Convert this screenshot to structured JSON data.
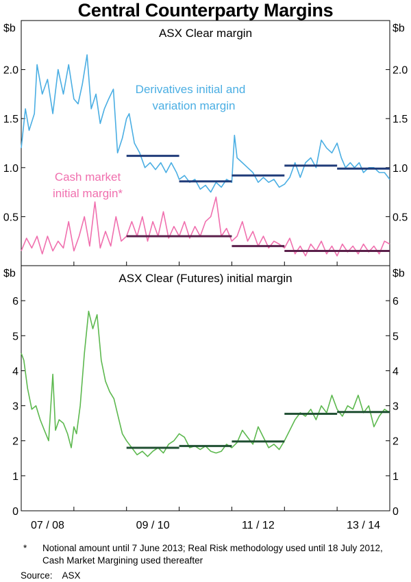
{
  "title": "Central Counterparty Margins",
  "footnote": {
    "mark": "*",
    "text": "Notional amount until 7 June 2013; Real Risk methodology used until 18 July 2012, Cash Market Margining used thereafter"
  },
  "source": {
    "label": "Source:",
    "value": "ASX"
  },
  "colors": {
    "derivatives": "#4aaee3",
    "cash": "#f06fae",
    "futures": "#5cb84e",
    "avg_navy": "#1f3a78",
    "avg_green": "#1f4f32"
  },
  "chart_data": [
    {
      "type": "line",
      "title": "ASX Clear margin",
      "ylabel": "$b",
      "ylim": [
        0.0,
        2.5
      ],
      "yticks": [
        0.5,
        1.0,
        1.5,
        2.0
      ],
      "ytick_labels": [
        "0.5",
        "1.0",
        "1.5",
        "2.0"
      ],
      "xlim": [
        2007.0,
        2014.0
      ],
      "series": [
        {
          "name": "Derivatives initial and variation margin",
          "label_lines": [
            "Derivatives initial and",
            "variation margin"
          ],
          "color": "#4aaee3",
          "x": [
            2007.0,
            2007.08,
            2007.15,
            2007.25,
            2007.3,
            2007.4,
            2007.5,
            2007.6,
            2007.7,
            2007.8,
            2007.9,
            2008.0,
            2008.08,
            2008.16,
            2008.25,
            2008.33,
            2008.42,
            2008.5,
            2008.58,
            2008.66,
            2008.75,
            2008.83,
            2008.92,
            2009.0,
            2009.05,
            2009.15,
            2009.25,
            2009.35,
            2009.45,
            2009.55,
            2009.65,
            2009.75,
            2009.85,
            2009.95,
            2010.0,
            2010.1,
            2010.2,
            2010.3,
            2010.4,
            2010.5,
            2010.6,
            2010.7,
            2010.8,
            2010.9,
            2011.0,
            2011.05,
            2011.1,
            2011.2,
            2011.3,
            2011.4,
            2011.5,
            2011.6,
            2011.7,
            2011.8,
            2011.9,
            2012.0,
            2012.1,
            2012.2,
            2012.3,
            2012.4,
            2012.5,
            2012.6,
            2012.7,
            2012.8,
            2012.9,
            2013.0,
            2013.08,
            2013.16,
            2013.25,
            2013.33,
            2013.42,
            2013.5,
            2013.6,
            2013.7,
            2013.8,
            2013.9,
            2014.0
          ],
          "values": [
            1.2,
            1.6,
            1.38,
            1.55,
            2.05,
            1.75,
            1.9,
            1.55,
            2.0,
            1.75,
            2.05,
            1.7,
            1.65,
            1.85,
            2.15,
            1.6,
            1.75,
            1.45,
            1.6,
            1.7,
            1.8,
            1.15,
            1.3,
            1.5,
            1.55,
            1.25,
            1.15,
            1.0,
            1.05,
            0.98,
            1.05,
            0.95,
            1.05,
            0.95,
            0.88,
            0.92,
            0.85,
            0.88,
            0.78,
            0.82,
            0.75,
            0.85,
            0.8,
            0.88,
            0.85,
            1.33,
            1.1,
            1.05,
            1.0,
            0.95,
            0.85,
            0.9,
            0.85,
            0.88,
            0.8,
            0.83,
            0.9,
            1.05,
            0.9,
            1.05,
            1.1,
            1.0,
            1.28,
            1.2,
            1.15,
            1.25,
            1.1,
            1.0,
            1.05,
            1.0,
            1.05,
            0.95,
            1.0,
            1.0,
            0.95,
            0.95,
            0.88
          ]
        },
        {
          "name": "Cash market initial margin*",
          "label_lines": [
            "Cash market",
            "initial margin*"
          ],
          "color": "#f06fae",
          "x": [
            2007.0,
            2007.1,
            2007.2,
            2007.3,
            2007.4,
            2007.5,
            2007.6,
            2007.7,
            2007.8,
            2007.9,
            2008.0,
            2008.1,
            2008.2,
            2008.3,
            2008.4,
            2008.5,
            2008.6,
            2008.7,
            2008.8,
            2008.9,
            2009.0,
            2009.1,
            2009.2,
            2009.3,
            2009.4,
            2009.5,
            2009.6,
            2009.7,
            2009.8,
            2009.9,
            2010.0,
            2010.1,
            2010.2,
            2010.3,
            2010.4,
            2010.5,
            2010.6,
            2010.7,
            2010.8,
            2010.9,
            2011.0,
            2011.1,
            2011.2,
            2011.3,
            2011.4,
            2011.5,
            2011.6,
            2011.7,
            2011.8,
            2011.9,
            2012.0,
            2012.1,
            2012.2,
            2012.3,
            2012.4,
            2012.5,
            2012.6,
            2012.7,
            2012.8,
            2012.9,
            2013.0,
            2013.1,
            2013.2,
            2013.3,
            2013.4,
            2013.5,
            2013.6,
            2013.7,
            2013.8,
            2013.9,
            2014.0
          ],
          "values": [
            0.15,
            0.28,
            0.18,
            0.3,
            0.12,
            0.3,
            0.15,
            0.25,
            0.18,
            0.45,
            0.15,
            0.3,
            0.5,
            0.2,
            0.65,
            0.18,
            0.35,
            0.2,
            0.5,
            0.25,
            0.3,
            0.45,
            0.3,
            0.5,
            0.25,
            0.45,
            0.3,
            0.55,
            0.28,
            0.4,
            0.3,
            0.45,
            0.28,
            0.4,
            0.3,
            0.45,
            0.5,
            0.7,
            0.3,
            0.38,
            0.25,
            0.3,
            0.45,
            0.25,
            0.35,
            0.2,
            0.3,
            0.18,
            0.25,
            0.22,
            0.18,
            0.28,
            0.12,
            0.2,
            0.1,
            0.22,
            0.15,
            0.25,
            0.12,
            0.2,
            0.1,
            0.22,
            0.14,
            0.2,
            0.12,
            0.22,
            0.14,
            0.2,
            0.12,
            0.25,
            0.22
          ]
        }
      ],
      "averages": [
        {
          "series": "Derivatives initial and variation margin",
          "x0": 2009.0,
          "x1": 2010.0,
          "value": 1.12
        },
        {
          "series": "Derivatives initial and variation margin",
          "x0": 2010.0,
          "x1": 2011.0,
          "value": 0.86
        },
        {
          "series": "Derivatives initial and variation margin",
          "x0": 2011.0,
          "x1": 2012.0,
          "value": 0.92
        },
        {
          "series": "Derivatives initial and variation margin",
          "x0": 2012.0,
          "x1": 2013.0,
          "value": 1.02
        },
        {
          "series": "Derivatives initial and variation margin",
          "x0": 2013.0,
          "x1": 2014.0,
          "value": 0.99
        },
        {
          "series": "Cash market initial margin*",
          "x0": 2009.0,
          "x1": 2011.0,
          "value": 0.3
        },
        {
          "series": "Cash market initial margin*",
          "x0": 2011.0,
          "x1": 2012.0,
          "value": 0.2
        },
        {
          "series": "Cash market initial margin*",
          "x0": 2012.0,
          "x1": 2014.0,
          "value": 0.15
        }
      ]
    },
    {
      "type": "line",
      "title": "ASX Clear (Futures) initial margin",
      "ylabel": "$b",
      "ylim": [
        0,
        7
      ],
      "yticks": [
        0,
        1,
        2,
        3,
        4,
        5,
        6
      ],
      "ytick_labels": [
        "0",
        "1",
        "2",
        "3",
        "4",
        "5",
        "6"
      ],
      "xlim": [
        2007.0,
        2014.0
      ],
      "xtick_labels": [
        "07 / 08",
        "09 / 10",
        "11 / 12",
        "13 / 14"
      ],
      "xtick_positions": [
        2007.5,
        2009.5,
        2011.5,
        2013.5
      ],
      "series": [
        {
          "name": "ASX Clear (Futures) initial margin",
          "color": "#5cb84e",
          "x": [
            2007.0,
            2007.05,
            2007.12,
            2007.2,
            2007.28,
            2007.36,
            2007.44,
            2007.52,
            2007.6,
            2007.65,
            2007.72,
            2007.8,
            2007.88,
            2007.95,
            2008.0,
            2008.05,
            2008.12,
            2008.2,
            2008.28,
            2008.36,
            2008.44,
            2008.52,
            2008.6,
            2008.68,
            2008.76,
            2008.84,
            2008.92,
            2009.0,
            2009.1,
            2009.2,
            2009.3,
            2009.4,
            2009.5,
            2009.6,
            2009.7,
            2009.8,
            2009.9,
            2010.0,
            2010.1,
            2010.2,
            2010.3,
            2010.4,
            2010.5,
            2010.6,
            2010.7,
            2010.8,
            2010.9,
            2011.0,
            2011.1,
            2011.2,
            2011.3,
            2011.4,
            2011.5,
            2011.6,
            2011.7,
            2011.8,
            2011.9,
            2012.0,
            2012.1,
            2012.2,
            2012.3,
            2012.4,
            2012.5,
            2012.6,
            2012.7,
            2012.8,
            2012.9,
            2013.0,
            2013.1,
            2013.2,
            2013.3,
            2013.4,
            2013.5,
            2013.6,
            2013.7,
            2013.8,
            2013.9,
            2014.0
          ],
          "values": [
            4.5,
            4.3,
            3.5,
            2.9,
            3.0,
            2.6,
            2.3,
            2.0,
            3.9,
            2.3,
            2.6,
            2.5,
            2.2,
            1.8,
            2.4,
            2.2,
            3.0,
            4.5,
            5.7,
            5.2,
            5.6,
            4.3,
            3.7,
            3.4,
            3.2,
            2.7,
            2.2,
            2.0,
            1.8,
            1.6,
            1.7,
            1.55,
            1.7,
            1.8,
            1.65,
            1.9,
            2.0,
            2.2,
            2.1,
            1.8,
            1.85,
            1.75,
            1.85,
            1.7,
            1.65,
            1.7,
            1.9,
            1.8,
            1.95,
            2.3,
            2.1,
            1.9,
            2.4,
            2.1,
            1.8,
            1.9,
            1.75,
            2.0,
            2.3,
            2.6,
            2.8,
            2.7,
            2.9,
            2.6,
            3.0,
            2.8,
            3.3,
            2.9,
            2.7,
            3.0,
            2.9,
            3.3,
            2.8,
            3.0,
            2.4,
            2.7,
            2.9,
            2.8
          ]
        }
      ],
      "averages": [
        {
          "series": "ASX Clear (Futures) initial margin",
          "x0": 2009.0,
          "x1": 2010.0,
          "value": 1.8
        },
        {
          "series": "ASX Clear (Futures) initial margin",
          "x0": 2010.0,
          "x1": 2011.0,
          "value": 1.85
        },
        {
          "series": "ASX Clear (Futures) initial margin",
          "x0": 2011.0,
          "x1": 2012.0,
          "value": 1.98
        },
        {
          "series": "ASX Clear (Futures) initial margin",
          "x0": 2012.0,
          "x1": 2013.0,
          "value": 2.77
        },
        {
          "series": "ASX Clear (Futures) initial margin",
          "x0": 2013.0,
          "x1": 2014.0,
          "value": 2.82
        }
      ]
    }
  ]
}
